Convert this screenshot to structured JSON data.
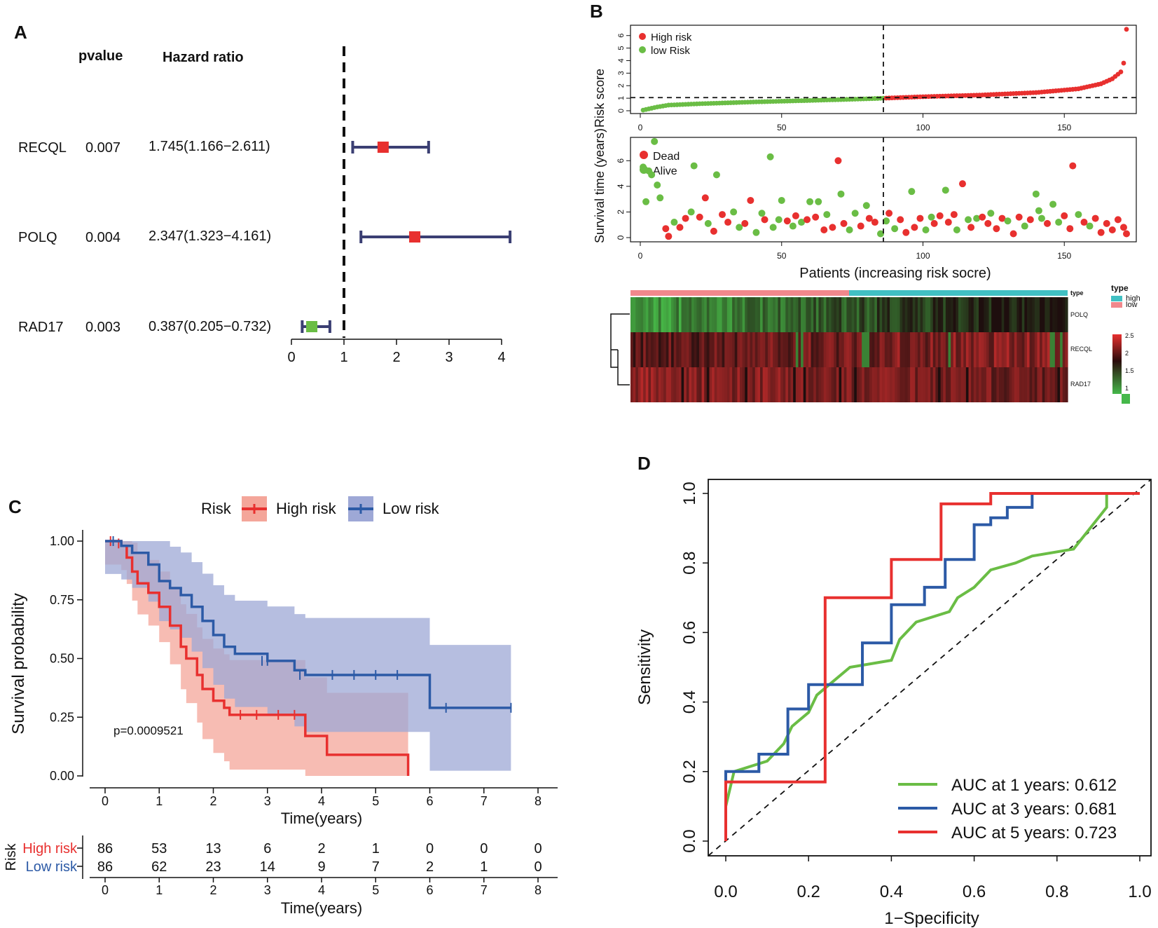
{
  "panels": {
    "a": "A",
    "b": "B",
    "c": "C",
    "d": "D"
  },
  "colors": {
    "red": "#e8302f",
    "green": "#6abd45",
    "blue": "#2c5aa6",
    "navy": "#3b3f73",
    "high_fill": "#f4a69a",
    "low_fill": "#9ea8d6",
    "type_high": "#41c0c3",
    "type_low": "#f1888c"
  },
  "chart_data": [
    {
      "id": "forest",
      "type": "forest",
      "header_pvalue": "pvalue",
      "header_hr": "Hazard ratio",
      "rows": [
        {
          "gene": "RECQL",
          "pvalue": "0.007",
          "hr_text": "1.745(1.166−2.611)",
          "hr": 1.745,
          "low": 1.166,
          "high": 2.611,
          "color": "#e8302f"
        },
        {
          "gene": "POLQ",
          "pvalue": "0.004",
          "hr_text": "2.347(1.323−4.161)",
          "hr": 2.347,
          "low": 1.323,
          "high": 4.161,
          "color": "#e8302f"
        },
        {
          "gene": "RAD17",
          "pvalue": "0.003",
          "hr_text": "0.387(0.205−0.732)",
          "hr": 0.387,
          "low": 0.205,
          "high": 0.732,
          "color": "#6abd45"
        }
      ],
      "xticks": [
        0,
        1,
        2,
        3,
        4
      ],
      "xlim": [
        0,
        4
      ],
      "ref_line": 1
    },
    {
      "id": "risk-score",
      "type": "scatter",
      "ylabel": "Risk score",
      "legend": [
        "High risk",
        "low Risk"
      ],
      "xticks": [
        0,
        50,
        100,
        150
      ],
      "yticks": [
        0,
        1,
        2,
        3,
        4,
        5,
        6
      ],
      "xlim": [
        0,
        172
      ],
      "ylim": [
        0,
        6.6
      ],
      "cutoff_index": 86,
      "cutoff_score": 1.05,
      "n_patients": 172,
      "score_curve": [
        [
          1,
          0.05
        ],
        [
          3,
          0.15
        ],
        [
          6,
          0.3
        ],
        [
          10,
          0.45
        ],
        [
          20,
          0.55
        ],
        [
          40,
          0.7
        ],
        [
          60,
          0.82
        ],
        [
          80,
          0.95
        ],
        [
          86,
          1.0
        ],
        [
          100,
          1.12
        ],
        [
          120,
          1.25
        ],
        [
          140,
          1.45
        ],
        [
          155,
          1.75
        ],
        [
          163,
          2.15
        ],
        [
          167,
          2.55
        ],
        [
          170,
          3.1
        ],
        [
          171,
          3.8
        ],
        [
          172,
          6.5
        ]
      ]
    },
    {
      "id": "survival-time",
      "type": "scatter",
      "ylabel": "Survival time (years)",
      "xlabel": "Patients (increasing risk socre)",
      "legend": [
        "Dead",
        "Alive"
      ],
      "xticks": [
        0,
        50,
        100,
        150
      ],
      "yticks": [
        0,
        2,
        4,
        6
      ],
      "xlim": [
        0,
        172
      ],
      "ylim": [
        0,
        7.6
      ],
      "cutoff_index": 86,
      "points": [
        [
          1,
          5.5,
          "a"
        ],
        [
          2,
          2.8,
          "a"
        ],
        [
          3,
          5.2,
          "a"
        ],
        [
          4,
          4.9,
          "a"
        ],
        [
          5,
          7.5,
          "a"
        ],
        [
          6,
          4.1,
          "a"
        ],
        [
          7,
          3.1,
          "a"
        ],
        [
          9,
          0.7,
          "d"
        ],
        [
          10,
          0.1,
          "d"
        ],
        [
          12,
          1.2,
          "a"
        ],
        [
          14,
          0.8,
          "d"
        ],
        [
          16,
          1.5,
          "d"
        ],
        [
          18,
          2.0,
          "a"
        ],
        [
          19,
          5.6,
          "a"
        ],
        [
          21,
          1.6,
          "d"
        ],
        [
          23,
          3.1,
          "d"
        ],
        [
          24,
          1.1,
          "a"
        ],
        [
          26,
          0.5,
          "d"
        ],
        [
          27,
          4.9,
          "a"
        ],
        [
          29,
          1.8,
          "d"
        ],
        [
          31,
          1.2,
          "d"
        ],
        [
          33,
          2.0,
          "a"
        ],
        [
          35,
          0.8,
          "a"
        ],
        [
          37,
          1.1,
          "d"
        ],
        [
          39,
          2.9,
          "d"
        ],
        [
          41,
          0.4,
          "a"
        ],
        [
          43,
          1.9,
          "a"
        ],
        [
          44,
          1.4,
          "d"
        ],
        [
          46,
          6.3,
          "a"
        ],
        [
          47,
          0.8,
          "a"
        ],
        [
          49,
          1.4,
          "a"
        ],
        [
          50,
          2.9,
          "a"
        ],
        [
          52,
          1.3,
          "d"
        ],
        [
          54,
          0.9,
          "a"
        ],
        [
          55,
          1.7,
          "d"
        ],
        [
          57,
          1.2,
          "a"
        ],
        [
          59,
          1.4,
          "d"
        ],
        [
          60,
          2.8,
          "a"
        ],
        [
          62,
          1.6,
          "d"
        ],
        [
          63,
          2.8,
          "a"
        ],
        [
          65,
          0.6,
          "d"
        ],
        [
          66,
          1.8,
          "a"
        ],
        [
          68,
          0.8,
          "d"
        ],
        [
          70,
          6.0,
          "d"
        ],
        [
          71,
          3.4,
          "a"
        ],
        [
          72,
          1.1,
          "d"
        ],
        [
          74,
          0.6,
          "a"
        ],
        [
          76,
          1.9,
          "a"
        ],
        [
          78,
          0.9,
          "d"
        ],
        [
          80,
          2.5,
          "a"
        ],
        [
          81,
          1.5,
          "d"
        ],
        [
          83,
          1.2,
          "d"
        ],
        [
          85,
          0.3,
          "a"
        ],
        [
          87,
          1.3,
          "a"
        ],
        [
          88,
          1.9,
          "d"
        ],
        [
          90,
          0.7,
          "a"
        ],
        [
          92,
          1.4,
          "d"
        ],
        [
          94,
          0.4,
          "d"
        ],
        [
          96,
          3.6,
          "a"
        ],
        [
          97,
          0.8,
          "d"
        ],
        [
          99,
          1.5,
          "d"
        ],
        [
          101,
          0.6,
          "a"
        ],
        [
          103,
          1.6,
          "a"
        ],
        [
          104,
          1.1,
          "d"
        ],
        [
          106,
          1.7,
          "d"
        ],
        [
          108,
          3.7,
          "a"
        ],
        [
          109,
          1.2,
          "d"
        ],
        [
          111,
          1.8,
          "d"
        ],
        [
          112,
          0.6,
          "a"
        ],
        [
          114,
          4.2,
          "d"
        ],
        [
          116,
          1.4,
          "a"
        ],
        [
          117,
          0.8,
          "d"
        ],
        [
          119,
          1.5,
          "a"
        ],
        [
          121,
          1.6,
          "d"
        ],
        [
          123,
          1.1,
          "d"
        ],
        [
          124,
          1.9,
          "a"
        ],
        [
          126,
          0.7,
          "d"
        ],
        [
          128,
          1.5,
          "d"
        ],
        [
          130,
          1.3,
          "a"
        ],
        [
          132,
          0.3,
          "d"
        ],
        [
          134,
          1.6,
          "d"
        ],
        [
          136,
          0.9,
          "a"
        ],
        [
          138,
          1.4,
          "d"
        ],
        [
          140,
          3.4,
          "a"
        ],
        [
          141,
          2.1,
          "a"
        ],
        [
          142,
          1.5,
          "a"
        ],
        [
          144,
          1.1,
          "d"
        ],
        [
          146,
          2.6,
          "a"
        ],
        [
          148,
          1.2,
          "a"
        ],
        [
          150,
          1.7,
          "d"
        ],
        [
          152,
          0.7,
          "d"
        ],
        [
          153,
          5.6,
          "d"
        ],
        [
          155,
          1.8,
          "a"
        ],
        [
          157,
          1.2,
          "d"
        ],
        [
          159,
          0.9,
          "a"
        ],
        [
          161,
          1.5,
          "d"
        ],
        [
          163,
          0.4,
          "d"
        ],
        [
          165,
          1.1,
          "d"
        ],
        [
          167,
          0.6,
          "d"
        ],
        [
          169,
          1.4,
          "d"
        ],
        [
          171,
          0.8,
          "d"
        ],
        [
          172,
          0.3,
          "d"
        ]
      ]
    },
    {
      "id": "heatmap",
      "type": "heatmap",
      "rows": [
        "POLQ",
        "RECQL",
        "RAD17"
      ],
      "legend_title": "type",
      "legend_items": [
        "high",
        "low"
      ],
      "colorbar_ticks": [
        "2.5",
        "2",
        "1.5",
        "1"
      ],
      "split_fraction": 0.5
    },
    {
      "id": "km",
      "type": "line",
      "legend_title": "Risk",
      "legend": [
        "High risk",
        "Low risk"
      ],
      "ylabel": "Survival probability",
      "xlabel": "Time(years)",
      "pvalue_text": "p=0.0009521",
      "xticks": [
        0,
        1,
        2,
        3,
        4,
        5,
        6,
        7,
        8
      ],
      "yticks": [
        "0.00",
        "0.25",
        "0.50",
        "0.75",
        "1.00"
      ],
      "xlim": [
        0,
        8
      ],
      "ylim": [
        0,
        1
      ],
      "series": [
        {
          "name": "High risk",
          "steps": [
            [
              0,
              1.0
            ],
            [
              0.3,
              0.98
            ],
            [
              0.4,
              0.93
            ],
            [
              0.5,
              0.87
            ],
            [
              0.6,
              0.82
            ],
            [
              0.8,
              0.78
            ],
            [
              1.0,
              0.72
            ],
            [
              1.2,
              0.64
            ],
            [
              1.4,
              0.55
            ],
            [
              1.5,
              0.5
            ],
            [
              1.7,
              0.43
            ],
            [
              1.8,
              0.37
            ],
            [
              2.0,
              0.32
            ],
            [
              2.2,
              0.29
            ],
            [
              2.3,
              0.26
            ],
            [
              3.7,
              0.17
            ],
            [
              4.1,
              0.09
            ],
            [
              5.6,
              0.0
            ]
          ],
          "end": 5.6
        },
        {
          "name": "Low risk",
          "steps": [
            [
              0,
              1.0
            ],
            [
              0.3,
              0.98
            ],
            [
              0.5,
              0.95
            ],
            [
              0.8,
              0.9
            ],
            [
              1.0,
              0.83
            ],
            [
              1.2,
              0.8
            ],
            [
              1.4,
              0.77
            ],
            [
              1.6,
              0.72
            ],
            [
              1.8,
              0.66
            ],
            [
              2.0,
              0.6
            ],
            [
              2.2,
              0.55
            ],
            [
              2.4,
              0.52
            ],
            [
              3.0,
              0.49
            ],
            [
              3.5,
              0.45
            ],
            [
              3.7,
              0.43
            ],
            [
              6.0,
              0.29
            ]
          ],
          "end": 7.5
        }
      ],
      "table_ylabel": "Risk",
      "table_xlabel": "Time(years)",
      "risk_table": [
        {
          "name": "High risk",
          "counts": [
            "86",
            "53",
            "13",
            "6",
            "2",
            "1",
            "0",
            "0",
            "0"
          ]
        },
        {
          "name": "Low risk",
          "counts": [
            "86",
            "62",
            "23",
            "14",
            "9",
            "7",
            "2",
            "1",
            "0"
          ]
        }
      ]
    },
    {
      "id": "roc",
      "type": "line",
      "xlabel": "1−Specificity",
      "ylabel": "Sensitivity",
      "xticks": [
        "0.0",
        "0.2",
        "0.4",
        "0.6",
        "0.8",
        "1.0"
      ],
      "yticks": [
        "0.0",
        "0.2",
        "0.4",
        "0.6",
        "0.8",
        "1.0"
      ],
      "xlim": [
        0,
        1
      ],
      "ylim": [
        0,
        1
      ],
      "series": [
        {
          "name": "AUC at 1 years: 0.612",
          "color": "#6abd45",
          "points": [
            [
              0,
              0
            ],
            [
              0,
              0.1
            ],
            [
              0.02,
              0.2
            ],
            [
              0.1,
              0.23
            ],
            [
              0.14,
              0.28
            ],
            [
              0.16,
              0.33
            ],
            [
              0.2,
              0.37
            ],
            [
              0.22,
              0.42
            ],
            [
              0.26,
              0.46
            ],
            [
              0.3,
              0.5
            ],
            [
              0.4,
              0.52
            ],
            [
              0.42,
              0.58
            ],
            [
              0.46,
              0.63
            ],
            [
              0.54,
              0.66
            ],
            [
              0.56,
              0.7
            ],
            [
              0.6,
              0.73
            ],
            [
              0.64,
              0.78
            ],
            [
              0.7,
              0.8
            ],
            [
              0.74,
              0.82
            ],
            [
              0.84,
              0.84
            ],
            [
              0.88,
              0.9
            ],
            [
              0.92,
              0.96
            ],
            [
              0.92,
              1.0
            ],
            [
              1.0,
              1.0
            ]
          ]
        },
        {
          "name": "AUC at 3 years: 0.681",
          "color": "#2c5aa6",
          "points": [
            [
              0,
              0
            ],
            [
              0,
              0.2
            ],
            [
              0.08,
              0.2
            ],
            [
              0.08,
              0.25
            ],
            [
              0.15,
              0.25
            ],
            [
              0.15,
              0.38
            ],
            [
              0.2,
              0.38
            ],
            [
              0.2,
              0.45
            ],
            [
              0.27,
              0.45
            ],
            [
              0.27,
              0.45
            ],
            [
              0.33,
              0.45
            ],
            [
              0.33,
              0.57
            ],
            [
              0.4,
              0.57
            ],
            [
              0.4,
              0.68
            ],
            [
              0.48,
              0.68
            ],
            [
              0.48,
              0.73
            ],
            [
              0.53,
              0.73
            ],
            [
              0.53,
              0.81
            ],
            [
              0.6,
              0.81
            ],
            [
              0.6,
              0.91
            ],
            [
              0.64,
              0.91
            ],
            [
              0.64,
              0.93
            ],
            [
              0.68,
              0.93
            ],
            [
              0.68,
              0.96
            ],
            [
              0.74,
              0.96
            ],
            [
              0.74,
              1.0
            ],
            [
              1.0,
              1.0
            ]
          ]
        },
        {
          "name": "AUC at 5 years: 0.723",
          "color": "#e8302f",
          "points": [
            [
              0,
              0
            ],
            [
              0,
              0.17
            ],
            [
              0.24,
              0.17
            ],
            [
              0.24,
              0.7
            ],
            [
              0.4,
              0.7
            ],
            [
              0.4,
              0.81
            ],
            [
              0.52,
              0.81
            ],
            [
              0.52,
              0.97
            ],
            [
              0.64,
              0.97
            ],
            [
              0.64,
              1.0
            ],
            [
              1.0,
              1.0
            ]
          ]
        }
      ]
    }
  ]
}
